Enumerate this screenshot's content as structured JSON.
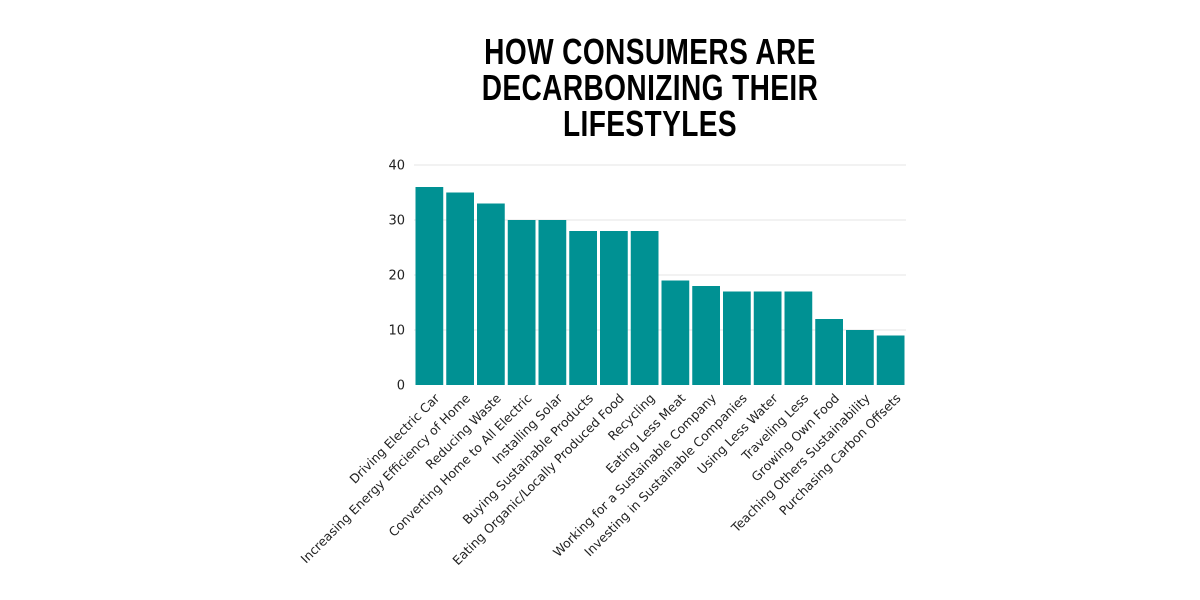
{
  "title_lines": [
    "HOW CONSUMERS ARE",
    "DECARBONIZING THEIR",
    "LIFESTYLES"
  ],
  "colors": {
    "bar": "#009193",
    "grid": "#e6e6e6",
    "text": "#222222",
    "title": "#000000"
  },
  "chart_data": {
    "type": "bar",
    "title": "HOW CONSUMERS ARE DECARBONIZING THEIR LIFESTYLES",
    "xlabel": "",
    "ylabel": "",
    "ylim": [
      0,
      40
    ],
    "yticks": [
      0,
      10,
      20,
      30,
      40
    ],
    "grid": true,
    "categories": [
      "Driving Electric Car",
      "Increasing Energy Efficiency of Home",
      "Reducing Waste",
      "Converting Home to All Electric",
      "Installing Solar",
      "Buying Sustainable Products",
      "Eating Organic/Locally Produced Food",
      "Recycling",
      "Eating Less Meat",
      "Working for a Sustainable Company",
      "Investing in Sustainable Companies",
      "Using Less Water",
      "Traveling Less",
      "Growing Own Food",
      "Teaching Others Sustainability",
      "Purchasing Carbon Offsets"
    ],
    "values": [
      36,
      35,
      33,
      30,
      30,
      28,
      28,
      28,
      19,
      18,
      17,
      17,
      17,
      12,
      10,
      9
    ]
  }
}
